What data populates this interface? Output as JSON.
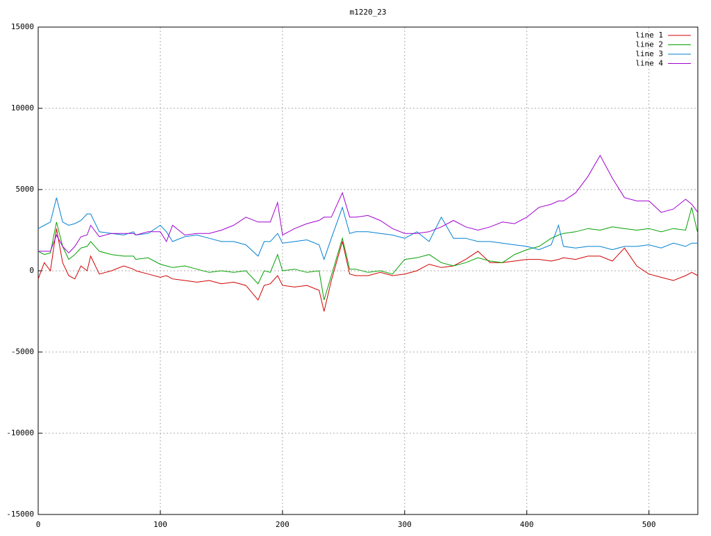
{
  "chart_data": {
    "type": "line",
    "title": "m1220_23",
    "x": [
      0,
      5,
      10,
      15,
      20,
      25,
      30,
      35,
      40,
      43,
      50,
      60,
      70,
      78,
      80,
      90,
      100,
      105,
      110,
      120,
      130,
      140,
      150,
      160,
      170,
      180,
      185,
      190,
      196,
      200,
      210,
      220,
      230,
      234,
      240,
      249,
      255,
      260,
      270,
      280,
      290,
      300,
      310,
      320,
      330,
      340,
      350,
      360,
      370,
      380,
      390,
      400,
      410,
      420,
      426,
      430,
      440,
      450,
      460,
      470,
      480,
      490,
      500,
      510,
      520,
      530,
      535,
      540
    ],
    "series": [
      {
        "name": "line 1",
        "color": "#d00000",
        "values": [
          -500,
          500,
          0,
          2600,
          500,
          -300,
          -500,
          300,
          0,
          900,
          -200,
          0,
          300,
          100,
          0,
          -200,
          -400,
          -300,
          -500,
          -600,
          -700,
          -600,
          -800,
          -700,
          -900,
          -1800,
          -900,
          -800,
          -300,
          -900,
          -1000,
          -900,
          -1200,
          -2500,
          -600,
          1800,
          -200,
          -300,
          -300,
          -100,
          -300,
          -200,
          0,
          400,
          200,
          300,
          700,
          1200,
          500,
          500,
          600,
          700,
          700,
          600,
          700,
          800,
          700,
          900,
          900,
          600,
          1400,
          300,
          -200,
          -400,
          -600,
          -300,
          -100,
          -300
        ]
      },
      {
        "name": "line 2",
        "color": "#00a000",
        "values": [
          1200,
          1000,
          1100,
          3000,
          1500,
          700,
          1000,
          1400,
          1500,
          1800,
          1200,
          1000,
          900,
          900,
          700,
          800,
          400,
          300,
          200,
          300,
          100,
          -100,
          0,
          -100,
          0,
          -800,
          0,
          -100,
          1000,
          0,
          100,
          -100,
          0,
          -1800,
          -300,
          2000,
          100,
          100,
          -100,
          0,
          -200,
          700,
          800,
          1000,
          500,
          300,
          500,
          800,
          600,
          500,
          1000,
          1300,
          1500,
          2000,
          2200,
          2300,
          2400,
          2600,
          2500,
          2700,
          2600,
          2500,
          2600,
          2400,
          2600,
          2500,
          3900,
          2300
        ]
      },
      {
        "name": "line 3",
        "color": "#0080d0",
        "values": [
          2600,
          2800,
          3000,
          4500,
          3000,
          2800,
          2900,
          3100,
          3500,
          3500,
          2400,
          2300,
          2200,
          2400,
          2200,
          2300,
          2800,
          2400,
          1800,
          2100,
          2200,
          2000,
          1800,
          1800,
          1600,
          900,
          1800,
          1800,
          2300,
          1700,
          1800,
          1900,
          1600,
          700,
          2000,
          3900,
          2300,
          2400,
          2400,
          2300,
          2200,
          2000,
          2400,
          1800,
          3300,
          2000,
          2000,
          1800,
          1800,
          1700,
          1600,
          1500,
          1300,
          1600,
          2800,
          1500,
          1400,
          1500,
          1500,
          1300,
          1500,
          1500,
          1600,
          1400,
          1700,
          1500,
          1700,
          1700
        ]
      },
      {
        "name": "line 4",
        "color": "#a000d0",
        "values": [
          1200,
          1200,
          1200,
          2200,
          1500,
          1100,
          1500,
          2100,
          2200,
          2800,
          2100,
          2300,
          2300,
          2300,
          2200,
          2400,
          2400,
          1800,
          2800,
          2200,
          2300,
          2300,
          2500,
          2800,
          3300,
          3000,
          3000,
          3000,
          4200,
          2200,
          2600,
          2900,
          3100,
          3300,
          3300,
          4800,
          3300,
          3300,
          3400,
          3100,
          2600,
          2300,
          2300,
          2400,
          2700,
          3100,
          2700,
          2500,
          2700,
          3000,
          2900,
          3300,
          3900,
          4100,
          4300,
          4300,
          4800,
          5800,
          7100,
          5700,
          4500,
          4300,
          4300,
          3600,
          3800,
          4400,
          4100,
          3600
        ]
      }
    ],
    "xlim": [
      0,
      540
    ],
    "xticks": [
      0,
      100,
      200,
      300,
      400,
      500
    ],
    "ylim": [
      -15000,
      15000
    ],
    "yticks": [
      -15000,
      -10000,
      -5000,
      0,
      5000,
      10000,
      15000
    ],
    "grid": true,
    "legend": "top-right"
  }
}
